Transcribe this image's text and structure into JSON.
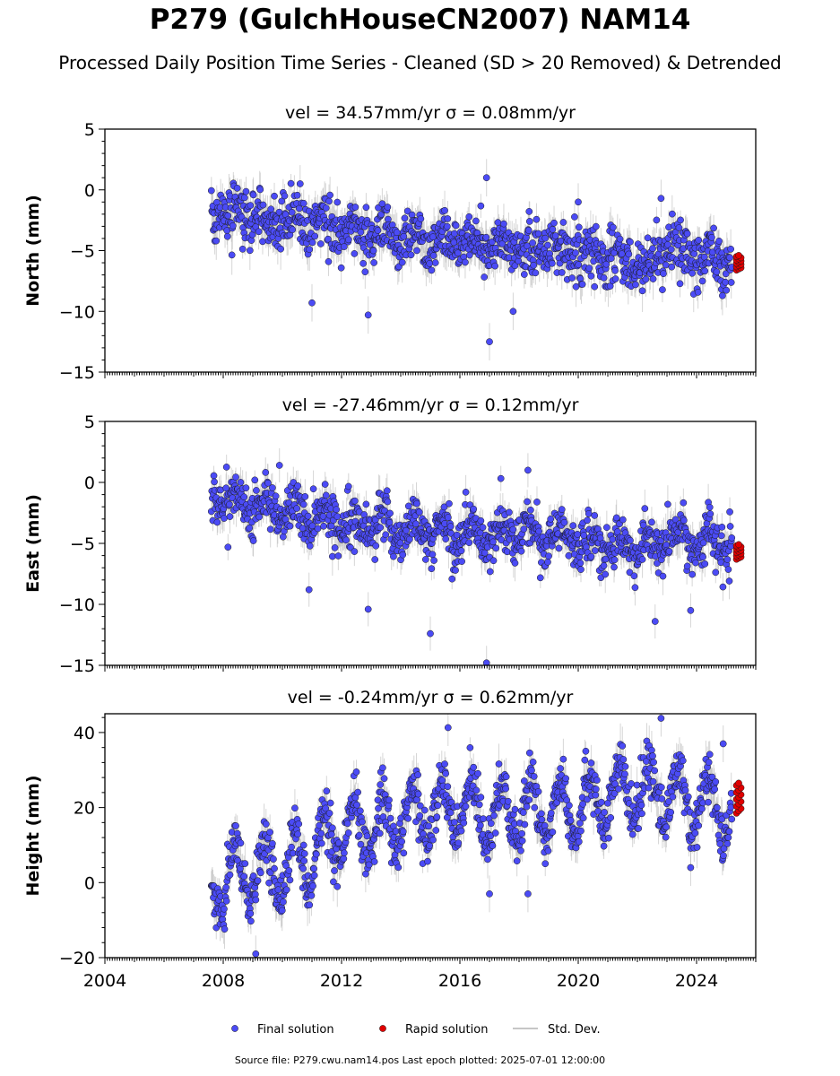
{
  "figure": {
    "title": "P279 (GulchHouseCN2007) NAM14",
    "subtitle": "Processed Daily Position Time Series - Cleaned (SD > 20 Removed) & Detrended",
    "source_note": "Source file: P279.cwu.nam14.pos  Last epoch plotted: 2025-07-01 12:00:00"
  },
  "colors": {
    "final": "#4b4bf5",
    "rapid": "#e00000",
    "std_dev": "#b4b4b4",
    "marker_edge": "#1a1a1a",
    "axis": "#000000"
  },
  "legend": {
    "placement": "bottom-center",
    "items": [
      {
        "label": "Final solution",
        "marker": "blue-dot"
      },
      {
        "label": "Rapid solution",
        "marker": "red-dot"
      },
      {
        "label": "Std. Dev.",
        "marker": "gray-line"
      }
    ]
  },
  "chart_data": [
    {
      "type": "scatter",
      "title": "vel = 34.57mm/yr   σ = 0.08mm/yr",
      "ylabel": "North (mm)",
      "xlim": [
        2004.0,
        2026.0
      ],
      "ylim": [
        -15,
        5
      ],
      "yticks": [
        -15,
        -10,
        -5,
        0,
        5
      ],
      "ytick_labels": [
        "−15",
        "−10",
        "−5",
        "0",
        "5"
      ],
      "xticks": [
        2004,
        2008,
        2012,
        2016,
        2020,
        2024
      ],
      "xtick_labels": [],
      "final_start": 2007.6,
      "final_end": 2025.2,
      "trend": [
        [
          2007.6,
          -1.5
        ],
        [
          2011.0,
          -3.0
        ],
        [
          2014.0,
          -3.8
        ],
        [
          2017.0,
          -4.5
        ],
        [
          2020.0,
          -5.2
        ],
        [
          2022.5,
          -6.2
        ],
        [
          2023.0,
          -4.8
        ],
        [
          2025.2,
          -5.8
        ]
      ],
      "seasonal_amp": 0.6,
      "noise": 1.1,
      "outliers": [
        [
          2016.9,
          1.0
        ],
        [
          2017.0,
          -12.5
        ],
        [
          2012.9,
          -10.3
        ],
        [
          2011.0,
          -9.3
        ],
        [
          2017.8,
          -10.0
        ],
        [
          2022.8,
          -0.7
        ],
        [
          2020.0,
          -1.0
        ],
        [
          2010.6,
          0.5
        ]
      ],
      "rapid": {
        "x_start": 2025.35,
        "x_end": 2025.5,
        "y_min": -6.6,
        "y_max": -5.4
      }
    },
    {
      "type": "scatter",
      "title": "vel = -27.46mm/yr   σ = 0.12mm/yr",
      "ylabel": "East (mm)",
      "xlim": [
        2004.0,
        2026.0
      ],
      "ylim": [
        -15,
        5
      ],
      "yticks": [
        -15,
        -10,
        -5,
        0,
        5
      ],
      "ytick_labels": [
        "−15",
        "−10",
        "−5",
        "0",
        "5"
      ],
      "xticks": [
        2004,
        2008,
        2012,
        2016,
        2020,
        2024
      ],
      "xtick_labels": [],
      "final_start": 2007.6,
      "final_end": 2025.2,
      "trend": [
        [
          2007.6,
          -1.0
        ],
        [
          2010.0,
          -2.5
        ],
        [
          2012.0,
          -3.0
        ],
        [
          2014.0,
          -3.8
        ],
        [
          2016.0,
          -4.3
        ],
        [
          2018.0,
          -4.0
        ],
        [
          2020.0,
          -4.8
        ],
        [
          2022.5,
          -5.5
        ],
        [
          2023.0,
          -4.5
        ],
        [
          2025.2,
          -5.2
        ]
      ],
      "seasonal_amp": 0.9,
      "noise": 1.0,
      "outliers": [
        [
          2015.0,
          -12.4
        ],
        [
          2016.9,
          -14.8
        ],
        [
          2012.9,
          -10.4
        ],
        [
          2023.8,
          -10.5
        ],
        [
          2018.3,
          1.0
        ],
        [
          2016.2,
          -0.8
        ],
        [
          2009.9,
          1.4
        ],
        [
          2010.9,
          -8.8
        ],
        [
          2022.6,
          -11.4
        ]
      ],
      "rapid": {
        "x_start": 2025.35,
        "x_end": 2025.5,
        "y_min": -6.3,
        "y_max": -5.1
      }
    },
    {
      "type": "scatter",
      "title": "vel = -0.24mm/yr   σ = 0.62mm/yr",
      "ylabel": "Height (mm)",
      "xlim": [
        2004.0,
        2026.0
      ],
      "ylim": [
        -20,
        45
      ],
      "yticks": [
        -20,
        0,
        20,
        40
      ],
      "ytick_labels": [
        "−20",
        "0",
        "20",
        "40"
      ],
      "xticks": [
        2004,
        2008,
        2012,
        2016,
        2020,
        2024
      ],
      "xtick_labels": [
        "2004",
        "2008",
        "2012",
        "2016",
        "2020",
        "2024"
      ],
      "final_start": 2007.6,
      "final_end": 2025.2,
      "trend": [
        [
          2007.6,
          -1.0
        ],
        [
          2010.0,
          4.0
        ],
        [
          2012.0,
          12.0
        ],
        [
          2014.0,
          17.0
        ],
        [
          2016.0,
          20.0
        ],
        [
          2018.0,
          18.0
        ],
        [
          2020.0,
          21.0
        ],
        [
          2022.5,
          25.0
        ],
        [
          2025.2,
          18.0
        ]
      ],
      "seasonal_amp": 8.0,
      "noise": 3.5,
      "outliers": [
        [
          2015.6,
          41.3
        ],
        [
          2022.8,
          43.8
        ],
        [
          2009.1,
          -19.0
        ],
        [
          2017.0,
          -3.0
        ],
        [
          2018.3,
          -3.0
        ],
        [
          2023.8,
          4.0
        ],
        [
          2024.9,
          37.0
        ]
      ],
      "rapid": {
        "x_start": 2025.35,
        "x_end": 2025.5,
        "y_min": 18.5,
        "y_max": 26.5
      }
    }
  ]
}
